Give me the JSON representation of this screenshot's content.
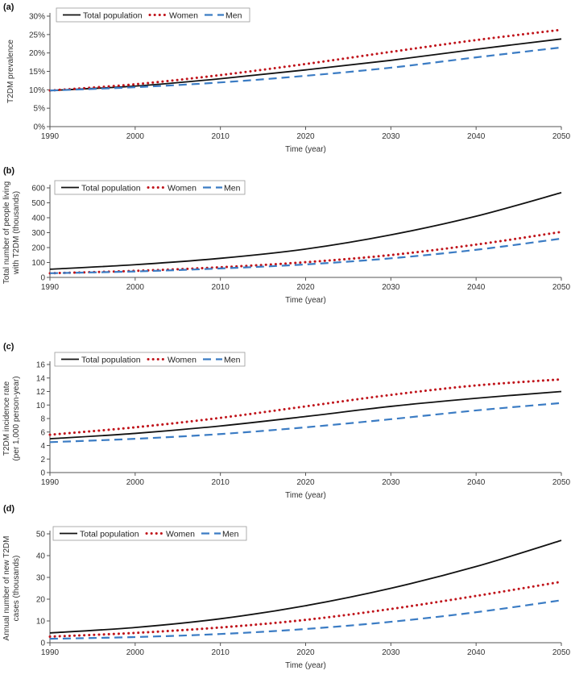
{
  "chart_data": [
    {
      "type": "line",
      "panel_label": "(a)",
      "title": "",
      "xlabel": "Time (year)",
      "ylabel": [
        "T2DM prevalence"
      ],
      "xlim": [
        1990,
        2050
      ],
      "ylim": [
        0,
        30
      ],
      "x_ticks": [
        1990,
        2000,
        2010,
        2020,
        2030,
        2040,
        2050
      ],
      "x_tick_labels": [
        "1990",
        "2000",
        "2010",
        "2020",
        "2030",
        "2040",
        "2050"
      ],
      "y_ticks": [
        0,
        5,
        10,
        15,
        20,
        25,
        30
      ],
      "y_tick_labels": [
        "0%",
        "5%",
        "10%",
        "15%",
        "20%",
        "25%",
        "30%"
      ],
      "legend_position": "top-left",
      "x": [
        1990,
        2000,
        2010,
        2020,
        2030,
        2040,
        2050
      ],
      "series": [
        {
          "name": "Total population",
          "style": "solid",
          "color": "#111111",
          "values": [
            9.8,
            11.0,
            13.0,
            15.4,
            18.0,
            21.0,
            23.8
          ]
        },
        {
          "name": "Women",
          "style": "dotted",
          "color": "#c0141b",
          "values": [
            9.8,
            11.5,
            14.0,
            17.0,
            20.3,
            23.5,
            26.3
          ]
        },
        {
          "name": "Men",
          "style": "dashed",
          "color": "#3b7cc4",
          "values": [
            9.8,
            10.7,
            12.0,
            13.8,
            16.0,
            18.8,
            21.5
          ]
        }
      ]
    },
    {
      "type": "line",
      "panel_label": "(b)",
      "title": "",
      "xlabel": "Time (year)",
      "ylabel": [
        "Total number of people living",
        "with T2DM (thousands)"
      ],
      "xlim": [
        1990,
        2050
      ],
      "ylim": [
        0,
        600
      ],
      "x_ticks": [
        1990,
        2000,
        2010,
        2020,
        2030,
        2040,
        2050
      ],
      "x_tick_labels": [
        "1990",
        "2000",
        "2010",
        "2020",
        "2030",
        "2040",
        "2050"
      ],
      "y_ticks": [
        0,
        100,
        200,
        300,
        400,
        500,
        600
      ],
      "y_tick_labels": [
        "0",
        "100",
        "200",
        "300",
        "400",
        "500",
        "600"
      ],
      "legend_position": "top-left",
      "x": [
        1990,
        2000,
        2010,
        2020,
        2030,
        2040,
        2050
      ],
      "series": [
        {
          "name": "Total population",
          "style": "solid",
          "color": "#111111",
          "values": [
            55,
            85,
            128,
            190,
            285,
            410,
            568
          ]
        },
        {
          "name": "Women",
          "style": "dotted",
          "color": "#c0141b",
          "values": [
            28,
            44,
            68,
            102,
            150,
            220,
            305
          ]
        },
        {
          "name": "Men",
          "style": "dashed",
          "color": "#3b7cc4",
          "values": [
            28,
            40,
            60,
            87,
            128,
            185,
            260
          ]
        }
      ]
    },
    {
      "type": "line",
      "panel_label": "(c)",
      "title": "",
      "xlabel": "Time (year)",
      "ylabel": [
        "T2DM incidence rate",
        "(per 1,000 person-year)"
      ],
      "xlim": [
        1990,
        2050
      ],
      "ylim": [
        0,
        16
      ],
      "x_ticks": [
        1990,
        2000,
        2010,
        2020,
        2030,
        2040,
        2050
      ],
      "x_tick_labels": [
        "1990",
        "2000",
        "2010",
        "2020",
        "2030",
        "2040",
        "2050"
      ],
      "y_ticks": [
        0,
        2,
        4,
        6,
        8,
        10,
        12,
        14,
        16
      ],
      "y_tick_labels": [
        "0",
        "2",
        "4",
        "6",
        "8",
        "10",
        "12",
        "14",
        "16"
      ],
      "legend_position": "top-left",
      "x": [
        1990,
        2000,
        2010,
        2020,
        2030,
        2040,
        2050
      ],
      "series": [
        {
          "name": "Total population",
          "style": "solid",
          "color": "#111111",
          "values": [
            5.0,
            5.8,
            6.9,
            8.3,
            9.8,
            11.0,
            12.0
          ]
        },
        {
          "name": "Women",
          "style": "dotted",
          "color": "#c0141b",
          "values": [
            5.6,
            6.7,
            8.1,
            9.8,
            11.5,
            12.9,
            13.8
          ]
        },
        {
          "name": "Men",
          "style": "dashed",
          "color": "#3b7cc4",
          "values": [
            4.5,
            5.0,
            5.7,
            6.7,
            7.9,
            9.2,
            10.3
          ]
        }
      ]
    },
    {
      "type": "line",
      "panel_label": "(d)",
      "title": "",
      "xlabel": "Time (year)",
      "ylabel": [
        "Annual number of new T2DM",
        "cases (thousands)"
      ],
      "xlim": [
        1990,
        2050
      ],
      "ylim": [
        0,
        50
      ],
      "x_ticks": [
        1990,
        2000,
        2010,
        2020,
        2030,
        2040,
        2050
      ],
      "x_tick_labels": [
        "1990",
        "2000",
        "2010",
        "2020",
        "2030",
        "2040",
        "2050"
      ],
      "y_ticks": [
        0,
        10,
        20,
        30,
        40,
        50
      ],
      "y_tick_labels": [
        "0",
        "10",
        "20",
        "30",
        "40",
        "50"
      ],
      "legend_position": "top-left",
      "x": [
        1990,
        2000,
        2010,
        2020,
        2030,
        2040,
        2050
      ],
      "series": [
        {
          "name": "Total population",
          "style": "solid",
          "color": "#111111",
          "values": [
            4.5,
            7.0,
            11.0,
            17.0,
            25.0,
            35.0,
            47.0
          ]
        },
        {
          "name": "Women",
          "style": "dotted",
          "color": "#c0141b",
          "values": [
            2.8,
            4.5,
            7.0,
            10.5,
            15.5,
            21.5,
            28.0
          ]
        },
        {
          "name": "Men",
          "style": "dashed",
          "color": "#3b7cc4",
          "values": [
            1.8,
            2.6,
            4.0,
            6.3,
            9.6,
            14.0,
            19.5
          ]
        }
      ]
    }
  ]
}
